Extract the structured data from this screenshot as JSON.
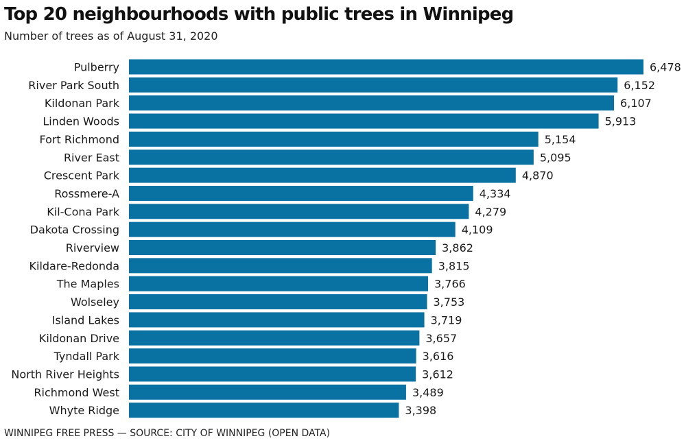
{
  "title": "Top 20 neighbourhoods with public trees in Winnipeg",
  "subtitle": "Number of trees as of August 31, 2020",
  "source": "WINNIPEG FREE PRESS — SOURCE: CITY OF WINNIPEG (OPEN DATA)",
  "colors": {
    "bar": "#0a72a3"
  },
  "chart_data": {
    "type": "bar",
    "orientation": "horizontal",
    "title": "Top 20 neighbourhoods with public trees in Winnipeg",
    "subtitle": "Number of trees as of August 31, 2020",
    "categories": [
      "Pulberry",
      "River Park South",
      "Kildonan Park",
      "Linden Woods",
      "Fort Richmond",
      "River East",
      "Crescent Park",
      "Rossmere-A",
      "Kil-Cona Park",
      "Dakota Crossing",
      "Riverview",
      "Kildare-Redonda",
      "The Maples",
      "Wolseley",
      "Island Lakes",
      "Kildonan Drive",
      "Tyndall Park",
      "North River Heights",
      "Richmond West",
      "Whyte Ridge"
    ],
    "values": [
      6478,
      6152,
      6107,
      5913,
      5154,
      5095,
      4870,
      4334,
      4279,
      4109,
      3862,
      3815,
      3766,
      3753,
      3719,
      3657,
      3616,
      3612,
      3489,
      3398
    ],
    "value_labels": [
      "6,478",
      "6,152",
      "6,107",
      "5,913",
      "5,154",
      "5,095",
      "4,870",
      "4,334",
      "4,279",
      "4,109",
      "3,862",
      "3,815",
      "3,766",
      "3,753",
      "3,719",
      "3,657",
      "3,616",
      "3,612",
      "3,489",
      "3,398"
    ],
    "xlim": [
      0,
      6478
    ],
    "grid": false,
    "xlabel": "",
    "ylabel": ""
  }
}
